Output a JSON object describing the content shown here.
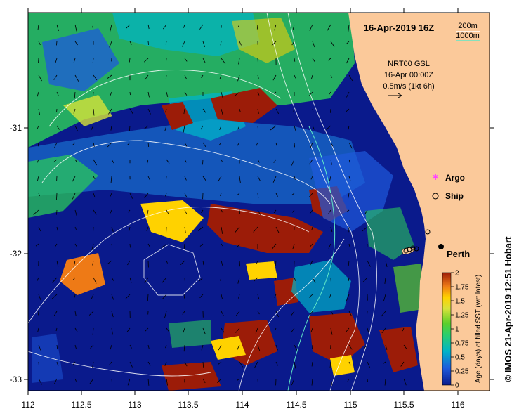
{
  "map": {
    "title": "16-Apr-2019 16Z",
    "bathymetry_legend": {
      "contour_1": "200m",
      "contour_2": "1000m"
    },
    "current_note": {
      "line1": "NRT00 GSL",
      "line2": "16-Apr 00:00Z",
      "line3": "0.5m/s (1kt 6h)"
    },
    "markers": {
      "argo_label": "Argo",
      "ship_label": "Ship",
      "city_label": "Perth"
    },
    "x_ticks": [
      "112",
      "112.5",
      "113",
      "113.5",
      "114",
      "114.5",
      "115",
      "115.5",
      "116"
    ],
    "y_ticks": [
      "-31",
      "-32",
      "-33"
    ],
    "colorbar": {
      "ticks": [
        "2",
        "1.75",
        "1.5",
        "1.25",
        "1",
        "0.75",
        "0.5",
        "0.25",
        "0"
      ],
      "label": "Age (days) of filled SST (wrt latest)"
    },
    "credit": "© IMOS 21-Apr-2019 12:51 Hobart",
    "colors": {
      "land": "#fbc99a",
      "ocean_deep": "#0a1a8c",
      "age_2": "#9c1c08",
      "age_1_5": "#ffd200",
      "age_1": "#5dcf2a",
      "age_0_5": "#00b4c8",
      "contour": "#ffffff",
      "contour_1000": "#5fe8c8",
      "argo": "#ff44ff"
    }
  }
}
